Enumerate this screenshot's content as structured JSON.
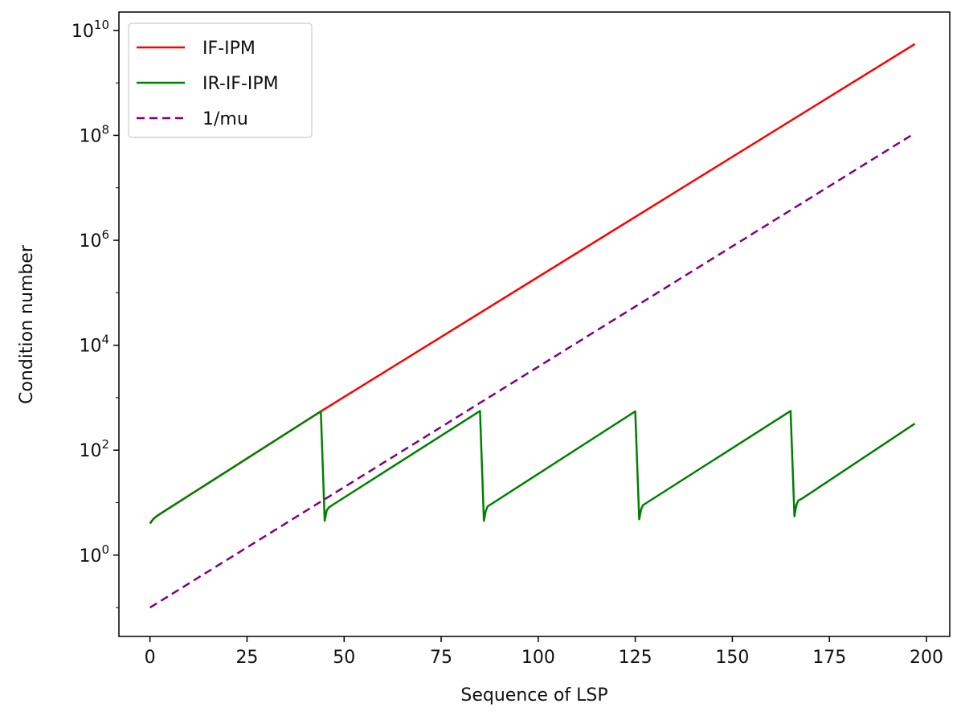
{
  "chart_data": {
    "type": "line",
    "title": "",
    "xlabel": "Sequence of LSP",
    "ylabel": "Condition number",
    "yscale": "log",
    "xlim": [
      -8,
      206
    ],
    "ylim_log10": [
      -1.55,
      10.35
    ],
    "xticks": [
      0,
      25,
      50,
      75,
      100,
      125,
      150,
      175,
      200
    ],
    "xtick_labels": [
      "0",
      "25",
      "50",
      "75",
      "100",
      "125",
      "150",
      "175",
      "200"
    ],
    "yticks_log10": [
      0,
      2,
      4,
      6,
      8,
      10
    ],
    "ytick_labels": [
      {
        "base": "10",
        "exp": "0"
      },
      {
        "base": "10",
        "exp": "2"
      },
      {
        "base": "10",
        "exp": "4"
      },
      {
        "base": "10",
        "exp": "6"
      },
      {
        "base": "10",
        "exp": "8"
      },
      {
        "base": "10",
        "exp": "10"
      }
    ],
    "legend_position": "top-left",
    "grid": false,
    "series": [
      {
        "name": "IF-IPM",
        "color": "#ff0000",
        "style": "solid",
        "x": [
          0,
          0.5,
          1,
          2,
          44,
          197
        ],
        "y": [
          4,
          4.5,
          5,
          5.7,
          550,
          5500000000.0
        ]
      },
      {
        "name": "IR-IF-IPM",
        "color": "#008000",
        "style": "solid",
        "x": [
          0,
          0.5,
          1,
          2,
          44,
          45,
          45.5,
          46,
          47,
          85,
          86,
          86.5,
          87,
          88,
          125,
          126,
          126.5,
          127,
          128,
          165,
          166,
          166.5,
          167,
          168,
          197
        ],
        "y": [
          4,
          4.5,
          5,
          5.7,
          550,
          4.5,
          7,
          8,
          9,
          560,
          4.5,
          7,
          8.5,
          9.5,
          550,
          4.8,
          7.5,
          9,
          10,
          560,
          5.5,
          9,
          11,
          12,
          320
        ]
      },
      {
        "name": "1/mu",
        "color": "#800080",
        "style": "dashed",
        "x": [
          0,
          197
        ],
        "y": [
          0.1,
          110000000.0
        ]
      }
    ]
  }
}
